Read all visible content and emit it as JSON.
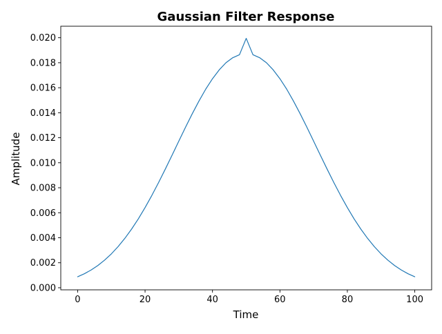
{
  "chart_data": {
    "type": "line",
    "title": "Gaussian Filter Response",
    "xlabel": "Time",
    "ylabel": "Amplitude",
    "xlim": [
      -5,
      105
    ],
    "ylim": [
      -0.000167,
      0.02092
    ],
    "x_ticks": [
      0,
      20,
      40,
      60,
      80,
      100
    ],
    "x_tick_labels": [
      "0",
      "20",
      "40",
      "60",
      "80",
      "100"
    ],
    "y_ticks": [
      0.0,
      0.002,
      0.004,
      0.006,
      0.008,
      0.01,
      0.012,
      0.014,
      0.016,
      0.018,
      0.02
    ],
    "y_tick_labels": [
      "0.000",
      "0.002",
      "0.004",
      "0.006",
      "0.008",
      "0.010",
      "0.012",
      "0.014",
      "0.016",
      "0.018",
      "0.020"
    ],
    "grid": false,
    "legend": "none",
    "series": [
      {
        "color": "#1f77b4",
        "x": [
          0,
          2,
          4,
          6,
          8,
          10,
          12,
          14,
          16,
          18,
          20,
          22,
          24,
          26,
          28,
          30,
          32,
          34,
          36,
          38,
          40,
          42,
          44,
          46,
          48,
          50,
          52,
          54,
          56,
          58,
          60,
          62,
          64,
          66,
          68,
          70,
          72,
          74,
          76,
          78,
          80,
          82,
          84,
          86,
          88,
          90,
          92,
          94,
          96,
          98,
          100
        ],
        "y": [
          0.00088,
          0.00112,
          0.00142,
          0.00178,
          0.00221,
          0.00271,
          0.00329,
          0.00395,
          0.00469,
          0.00551,
          0.00641,
          0.00738,
          0.00841,
          0.00949,
          0.0106,
          0.01172,
          0.01284,
          0.01392,
          0.01494,
          0.01589,
          0.01672,
          0.01743,
          0.018,
          0.0184,
          0.01864,
          0.01995,
          0.01864,
          0.0184,
          0.018,
          0.01743,
          0.01672,
          0.01589,
          0.01494,
          0.01392,
          0.01284,
          0.01172,
          0.0106,
          0.00949,
          0.00841,
          0.00738,
          0.00641,
          0.00551,
          0.00469,
          0.00395,
          0.00329,
          0.00271,
          0.00221,
          0.00178,
          0.00142,
          0.00112,
          0.00088
        ]
      }
    ]
  }
}
